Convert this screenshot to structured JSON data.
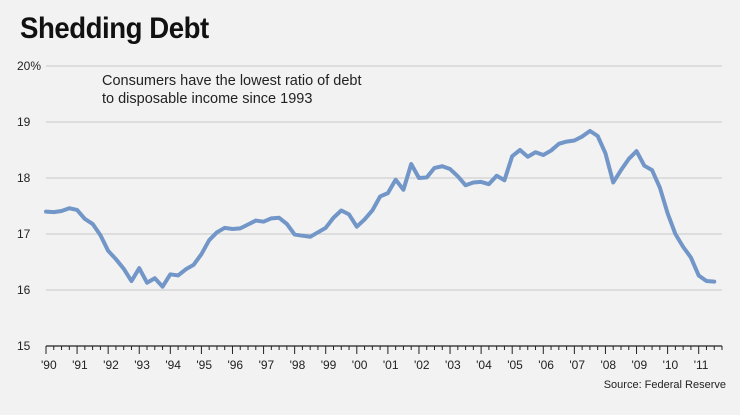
{
  "title": "Shedding Debt",
  "subtitle_lines": [
    "Consumers have the lowest ratio of debt",
    "to disposable income since 1993"
  ],
  "source": "Source: Federal Reserve",
  "colors": {
    "line": "#7196c7",
    "background": "#f2f2f2",
    "grid": "#c8c8c8",
    "axis": "#222222"
  },
  "chart_data": {
    "type": "line",
    "title": "Shedding Debt",
    "xlabel": "",
    "ylabel": "",
    "ylim": [
      15,
      20
    ],
    "xlim": [
      1990,
      2011.75
    ],
    "grid": true,
    "y_ticks": [
      {
        "value": 20,
        "label": "20%"
      },
      {
        "value": 19,
        "label": "19"
      },
      {
        "value": 18,
        "label": "18"
      },
      {
        "value": 17,
        "label": "17"
      },
      {
        "value": 16,
        "label": "16"
      },
      {
        "value": 15,
        "label": "15"
      }
    ],
    "x_ticks": [
      {
        "value": 1990,
        "label": "'90"
      },
      {
        "value": 1991,
        "label": "'91"
      },
      {
        "value": 1992,
        "label": "'92"
      },
      {
        "value": 1993,
        "label": "'93"
      },
      {
        "value": 1994,
        "label": "'94"
      },
      {
        "value": 1995,
        "label": "'95"
      },
      {
        "value": 1996,
        "label": "'96"
      },
      {
        "value": 1997,
        "label": "'97"
      },
      {
        "value": 1998,
        "label": "'98"
      },
      {
        "value": 1999,
        "label": "'99"
      },
      {
        "value": 2000,
        "label": "'00"
      },
      {
        "value": 2001,
        "label": "'01"
      },
      {
        "value": 2002,
        "label": "'02"
      },
      {
        "value": 2003,
        "label": "'03"
      },
      {
        "value": 2004,
        "label": "'04"
      },
      {
        "value": 2005,
        "label": "'05"
      },
      {
        "value": 2006,
        "label": "'06"
      },
      {
        "value": 2007,
        "label": "'07"
      },
      {
        "value": 2008,
        "label": "'08"
      },
      {
        "value": 2009,
        "label": "'09"
      },
      {
        "value": 2010,
        "label": "'10"
      },
      {
        "value": 2011,
        "label": "'11"
      }
    ],
    "series": [
      {
        "name": "Debt to disposable income",
        "points": [
          [
            1990.0,
            17.4
          ],
          [
            1990.25,
            17.39
          ],
          [
            1990.5,
            17.41
          ],
          [
            1990.75,
            17.46
          ],
          [
            1991.0,
            17.43
          ],
          [
            1991.25,
            17.27
          ],
          [
            1991.5,
            17.18
          ],
          [
            1991.75,
            16.98
          ],
          [
            1992.0,
            16.7
          ],
          [
            1992.25,
            16.55
          ],
          [
            1992.5,
            16.38
          ],
          [
            1992.75,
            16.16
          ],
          [
            1993.0,
            16.39
          ],
          [
            1993.25,
            16.13
          ],
          [
            1993.5,
            16.21
          ],
          [
            1993.75,
            16.06
          ],
          [
            1994.0,
            16.28
          ],
          [
            1994.25,
            16.26
          ],
          [
            1994.5,
            16.37
          ],
          [
            1994.75,
            16.45
          ],
          [
            1995.0,
            16.64
          ],
          [
            1995.25,
            16.89
          ],
          [
            1995.5,
            17.03
          ],
          [
            1995.75,
            17.11
          ],
          [
            1996.0,
            17.09
          ],
          [
            1996.25,
            17.1
          ],
          [
            1996.5,
            17.17
          ],
          [
            1996.75,
            17.24
          ],
          [
            1997.0,
            17.22
          ],
          [
            1997.25,
            17.28
          ],
          [
            1997.5,
            17.29
          ],
          [
            1997.75,
            17.18
          ],
          [
            1998.0,
            16.99
          ],
          [
            1998.25,
            16.97
          ],
          [
            1998.5,
            16.95
          ],
          [
            1998.75,
            17.03
          ],
          [
            1999.0,
            17.11
          ],
          [
            1999.25,
            17.29
          ],
          [
            1999.5,
            17.42
          ],
          [
            1999.75,
            17.35
          ],
          [
            2000.0,
            17.13
          ],
          [
            2000.25,
            17.26
          ],
          [
            2000.5,
            17.42
          ],
          [
            2000.75,
            17.67
          ],
          [
            2001.0,
            17.73
          ],
          [
            2001.25,
            17.97
          ],
          [
            2001.5,
            17.79
          ],
          [
            2001.75,
            18.25
          ],
          [
            2002.0,
            18.0
          ],
          [
            2002.25,
            18.01
          ],
          [
            2002.5,
            18.18
          ],
          [
            2002.75,
            18.21
          ],
          [
            2003.0,
            18.16
          ],
          [
            2003.25,
            18.03
          ],
          [
            2003.5,
            17.87
          ],
          [
            2003.75,
            17.92
          ],
          [
            2004.0,
            17.93
          ],
          [
            2004.25,
            17.89
          ],
          [
            2004.5,
            18.04
          ],
          [
            2004.75,
            17.96
          ],
          [
            2005.0,
            18.39
          ],
          [
            2005.25,
            18.5
          ],
          [
            2005.5,
            18.38
          ],
          [
            2005.75,
            18.46
          ],
          [
            2006.0,
            18.41
          ],
          [
            2006.25,
            18.49
          ],
          [
            2006.5,
            18.61
          ],
          [
            2006.75,
            18.65
          ],
          [
            2007.0,
            18.67
          ],
          [
            2007.25,
            18.74
          ],
          [
            2007.5,
            18.84
          ],
          [
            2007.75,
            18.75
          ],
          [
            2008.0,
            18.44
          ],
          [
            2008.25,
            17.92
          ],
          [
            2008.5,
            18.14
          ],
          [
            2008.75,
            18.34
          ],
          [
            2009.0,
            18.48
          ],
          [
            2009.25,
            18.22
          ],
          [
            2009.5,
            18.14
          ],
          [
            2009.75,
            17.83
          ],
          [
            2010.0,
            17.37
          ],
          [
            2010.25,
            17.0
          ],
          [
            2010.5,
            16.77
          ],
          [
            2010.75,
            16.58
          ],
          [
            2011.0,
            16.26
          ],
          [
            2011.25,
            16.16
          ],
          [
            2011.5,
            16.15
          ]
        ]
      }
    ]
  }
}
